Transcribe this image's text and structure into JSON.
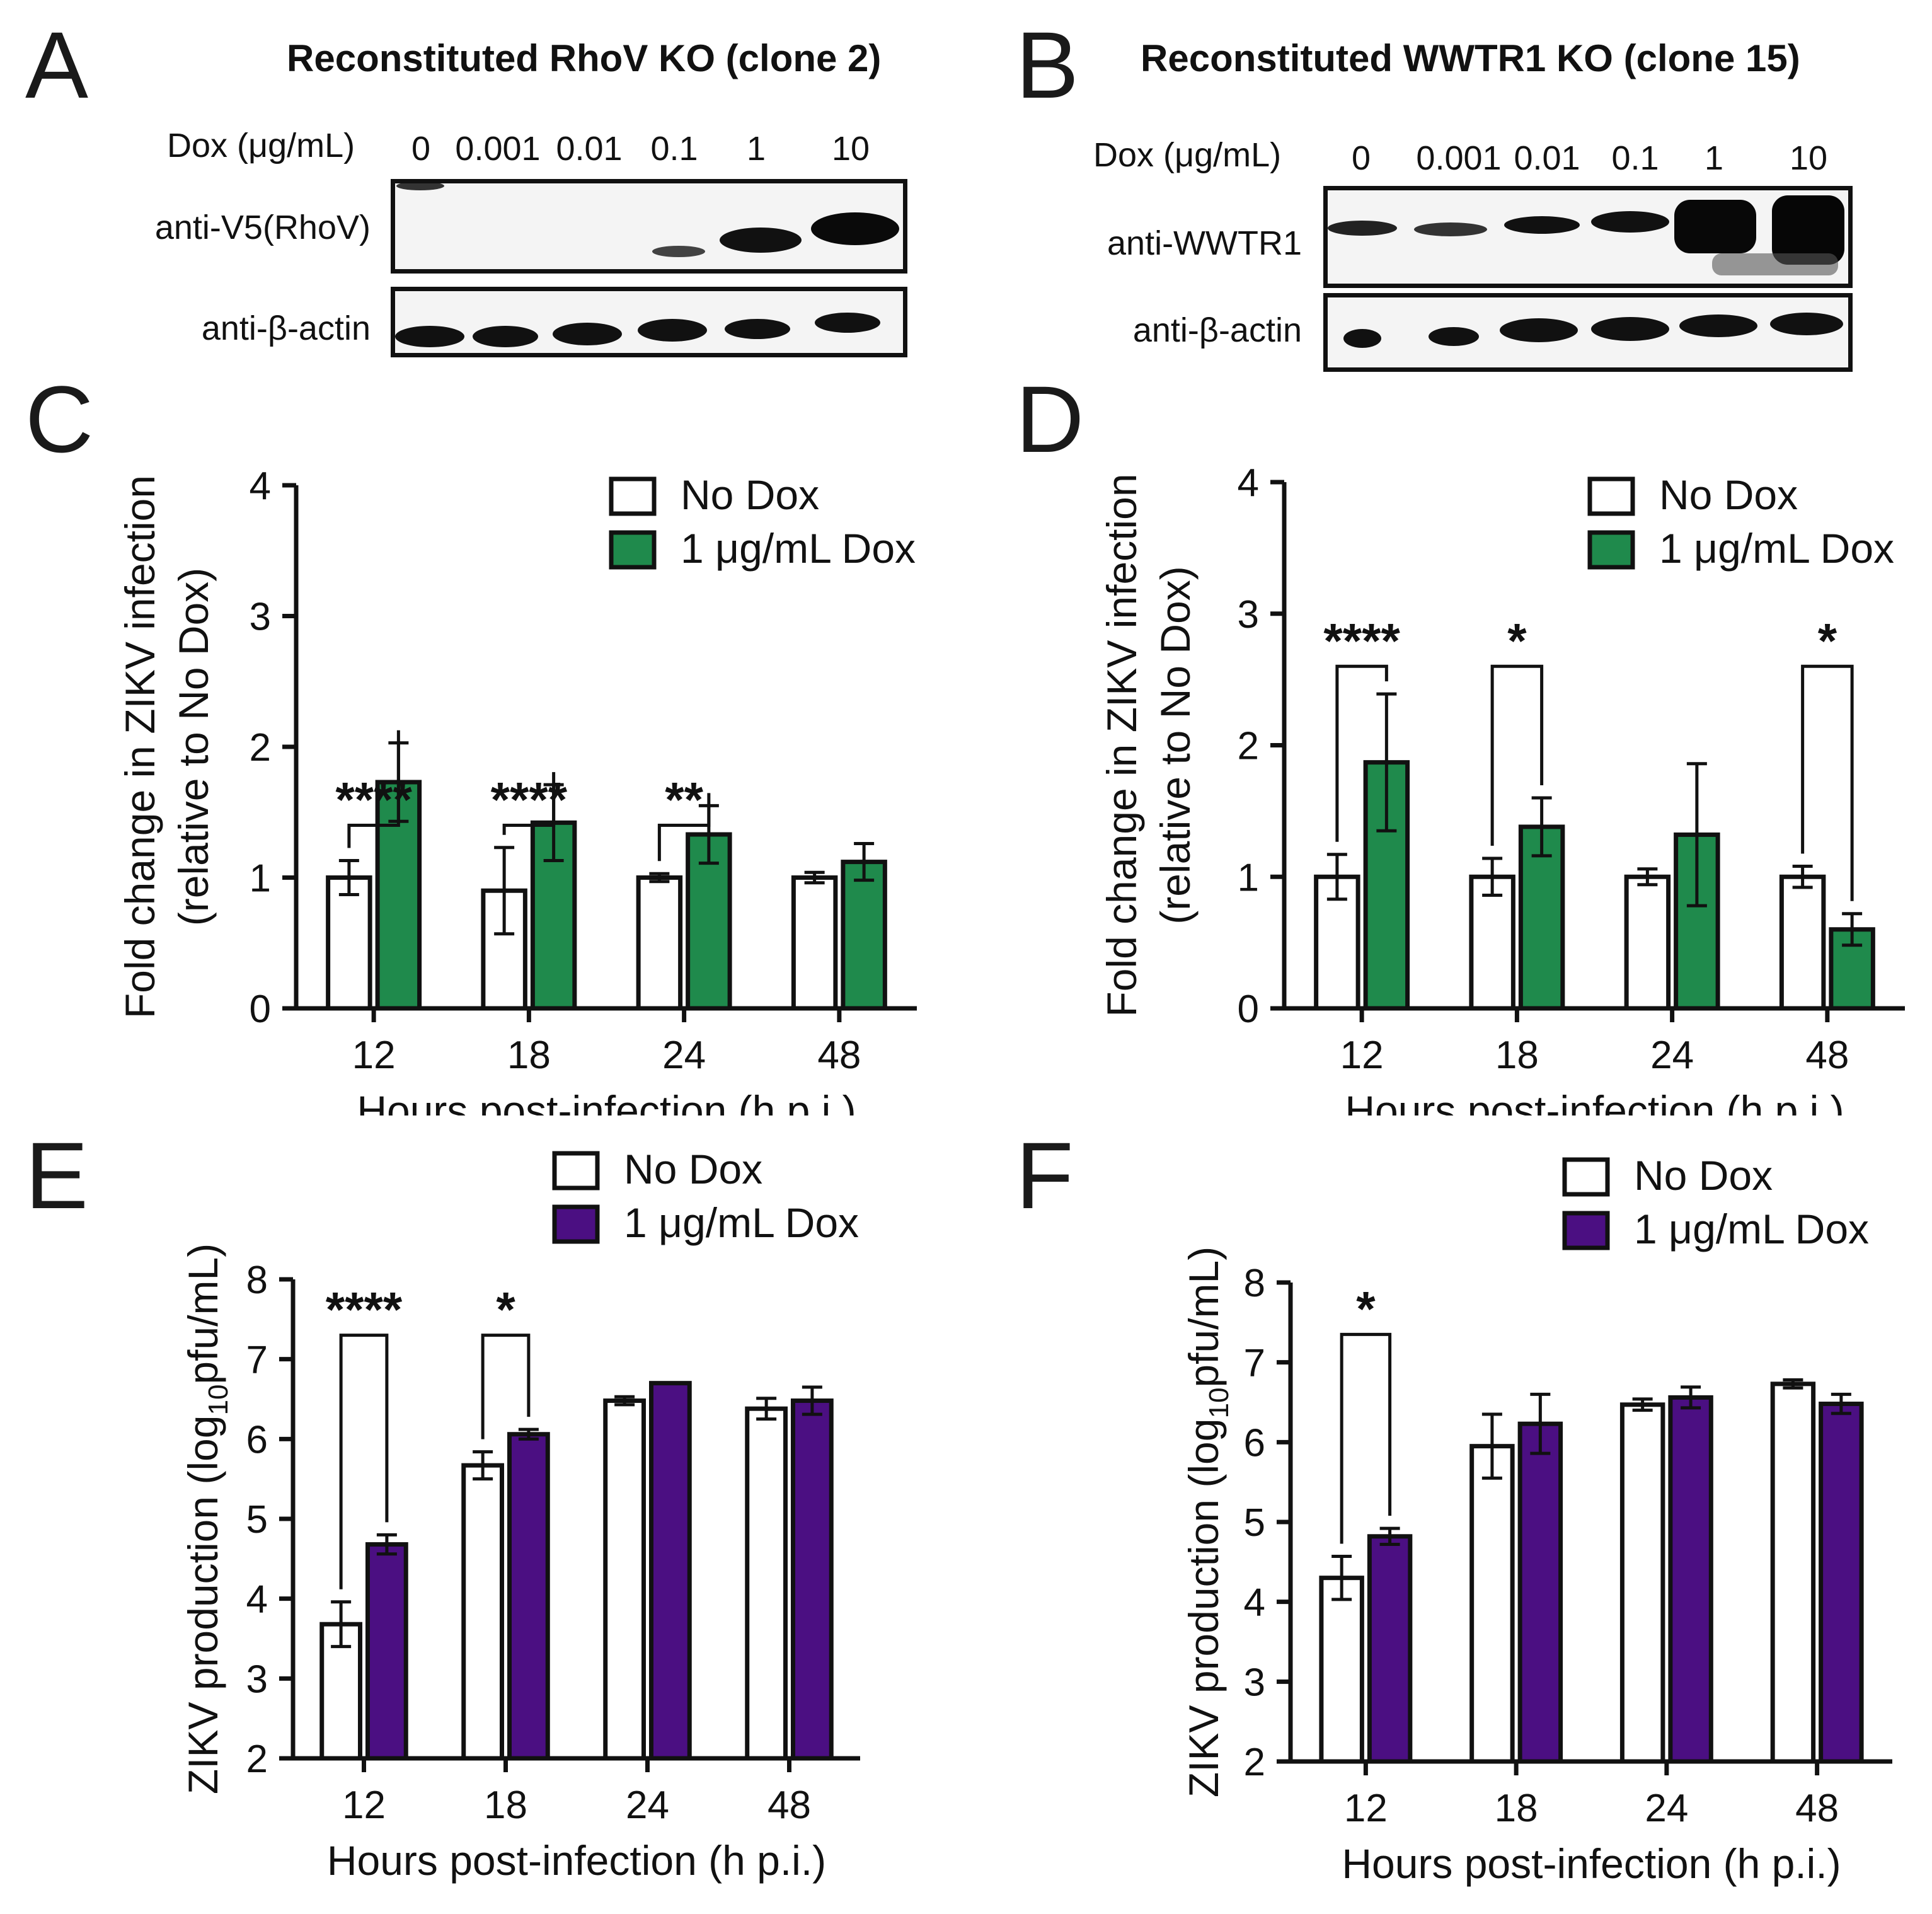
{
  "panel_letters": [
    "A",
    "B",
    "C",
    "D",
    "E",
    "F"
  ],
  "blot_A": {
    "title": "Reconstituted RhoV KO (clone 2)",
    "dox_label": "Dox (μg/mL)",
    "lanes": [
      "0",
      "0.001",
      "0.01",
      "0.1",
      "1",
      "10"
    ],
    "rows": [
      "anti-V5(RhoV)",
      "anti-β-actin"
    ]
  },
  "blot_B": {
    "title": "Reconstituted WWTR1 KO (clone 15)",
    "dox_label": "Dox (μg/mL)",
    "lanes": [
      "0",
      "0.001",
      "0.01",
      "0.1",
      "1",
      "10"
    ],
    "rows": [
      "anti-WWTR1",
      "anti-β-actin"
    ]
  },
  "colors": {
    "green": "#1f8a4c",
    "purple": "#4b0f82",
    "white": "#ffffff",
    "black": "#111111"
  },
  "chart_data": [
    {
      "panel": "C",
      "type": "bar",
      "categories": [
        "12",
        "18",
        "24",
        "48"
      ],
      "xlabel": "Hours post-infection (h p.i.)",
      "ylabel_line1": "Fold change in ZIKV infection",
      "ylabel_line2": "(relative to No Dox)",
      "ylim": [
        0,
        4
      ],
      "yticks": [
        "0",
        "1",
        "2",
        "3",
        "4"
      ],
      "series": [
        {
          "name": "No Dox",
          "color": "white",
          "values": [
            1.0,
            0.9,
            1.0,
            1.0
          ],
          "errors": [
            0.13,
            0.33,
            0.03,
            0.04
          ]
        },
        {
          "name": "1 μg/mL Dox",
          "color": "green",
          "values": [
            1.73,
            1.42,
            1.33,
            1.12
          ],
          "errors": [
            0.3,
            0.29,
            0.22,
            0.14
          ]
        }
      ],
      "significance": [
        {
          "category": 0,
          "label": "****",
          "bracket_y": 1.4
        },
        {
          "category": 1,
          "label": "****",
          "bracket_y": 1.4
        },
        {
          "category": 2,
          "label": "**",
          "bracket_y": 1.4
        }
      ],
      "legend_position": "top-right"
    },
    {
      "panel": "D",
      "type": "bar",
      "categories": [
        "12",
        "18",
        "24",
        "48"
      ],
      "xlabel": "Hours post-infection (h p.i.)",
      "ylabel_line1": "Fold change in ZIKV infection",
      "ylabel_line2": "(relative to No Dox)",
      "ylim": [
        0,
        4
      ],
      "yticks": [
        "0",
        "1",
        "2",
        "3",
        "4"
      ],
      "series": [
        {
          "name": "No Dox",
          "color": "white",
          "values": [
            1.0,
            1.0,
            1.0,
            1.0
          ],
          "errors": [
            0.17,
            0.14,
            0.06,
            0.08
          ]
        },
        {
          "name": "1 μg/mL Dox",
          "color": "green",
          "values": [
            1.87,
            1.38,
            1.32,
            0.6
          ],
          "errors": [
            0.52,
            0.22,
            0.54,
            0.12
          ]
        }
      ],
      "significance": [
        {
          "category": 0,
          "label": "****",
          "bracket_y": 2.6
        },
        {
          "category": 1,
          "label": "*",
          "bracket_y": 2.6
        },
        {
          "category": 3,
          "label": "*",
          "bracket_y": 2.6
        }
      ],
      "legend_position": "top-right"
    },
    {
      "panel": "E",
      "type": "bar",
      "categories": [
        "12",
        "18",
        "24",
        "48"
      ],
      "xlabel": "Hours post-infection (h p.i.)",
      "ylabel_prefix": "ZIKV production (log",
      "ylabel_sub": "10",
      "ylabel_suffix": "pfu/mL)",
      "ylim": [
        2,
        8
      ],
      "yticks": [
        "2",
        "3",
        "4",
        "5",
        "6",
        "7",
        "8"
      ],
      "series": [
        {
          "name": "No Dox",
          "color": "white",
          "values": [
            3.68,
            5.67,
            6.48,
            6.38
          ],
          "errors": [
            0.28,
            0.17,
            0.05,
            0.13
          ]
        },
        {
          "name": "1 μg/mL Dox",
          "color": "purple",
          "values": [
            4.68,
            6.06,
            6.7,
            6.48
          ],
          "errors": [
            0.12,
            0.06,
            0.0,
            0.17
          ]
        }
      ],
      "significance": [
        {
          "category": 0,
          "label": "****",
          "bracket_y": 7.3
        },
        {
          "category": 1,
          "label": "*",
          "bracket_y": 7.3
        }
      ],
      "legend_position": "top-right"
    },
    {
      "panel": "F",
      "type": "bar",
      "categories": [
        "12",
        "18",
        "24",
        "48"
      ],
      "xlabel": "Hours post-infection (h p.i.)",
      "ylabel_prefix": "ZIKV production (log",
      "ylabel_sub": "10",
      "ylabel_suffix": "pfu/mL)",
      "ylim": [
        2,
        8
      ],
      "yticks": [
        "2",
        "3",
        "4",
        "5",
        "6",
        "7",
        "8"
      ],
      "series": [
        {
          "name": "No Dox",
          "color": "white",
          "values": [
            4.3,
            5.95,
            6.47,
            6.73
          ],
          "errors": [
            0.27,
            0.4,
            0.07,
            0.05
          ]
        },
        {
          "name": "1 μg/mL Dox",
          "color": "purple",
          "values": [
            4.82,
            6.23,
            6.56,
            6.48
          ],
          "errors": [
            0.1,
            0.37,
            0.13,
            0.12
          ]
        }
      ],
      "significance": [
        {
          "category": 0,
          "label": "*",
          "bracket_y": 7.35
        }
      ],
      "legend_position": "top-right"
    }
  ]
}
